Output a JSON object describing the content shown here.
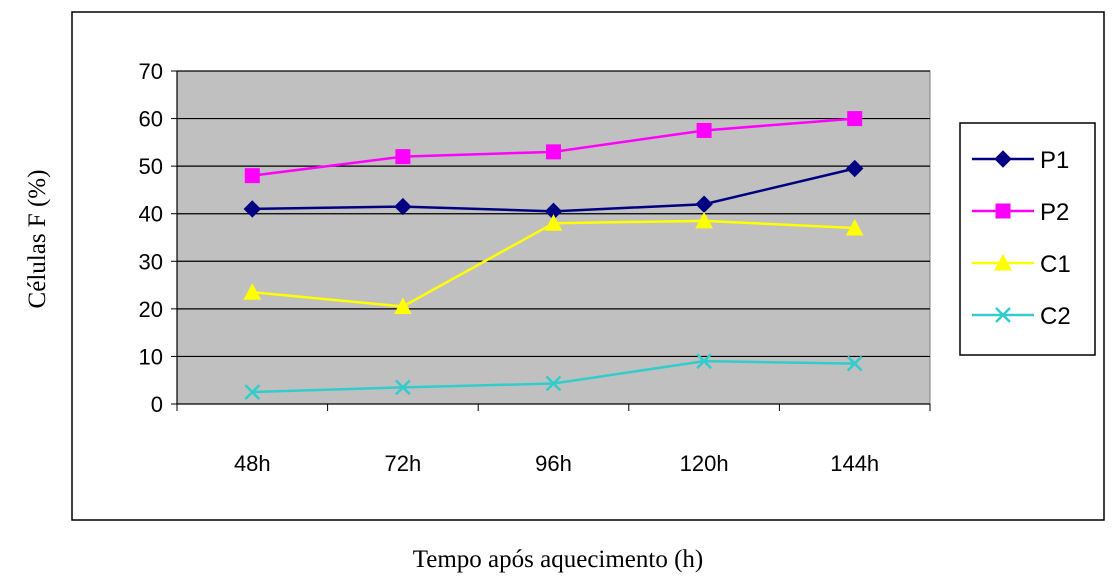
{
  "chart_data": {
    "type": "line",
    "xlabel": "Tempo após aquecimento (h)",
    "ylabel": "Células F (%)",
    "categories": [
      "48h",
      "72h",
      "96h",
      "120h",
      "144h"
    ],
    "ylim": [
      0,
      70
    ],
    "yticks": [
      0,
      10,
      20,
      30,
      40,
      50,
      60,
      70
    ],
    "grid": true,
    "plot_background": "#c0c0c0",
    "legend_position": "right",
    "series": [
      {
        "name": "P1",
        "color": "#000080",
        "marker": "diamond",
        "values": [
          41,
          41.5,
          40.5,
          42,
          49.5
        ]
      },
      {
        "name": "P2",
        "color": "#ff00ff",
        "marker": "square",
        "values": [
          48,
          52,
          53,
          57.5,
          60
        ]
      },
      {
        "name": "C1",
        "color": "#ffff00",
        "marker": "triangle",
        "values": [
          23.5,
          20.5,
          38,
          38.5,
          37
        ]
      },
      {
        "name": "C2",
        "color": "#33cccc",
        "marker": "x",
        "values": [
          2.5,
          3.5,
          4.3,
          9,
          8.5
        ]
      }
    ]
  }
}
